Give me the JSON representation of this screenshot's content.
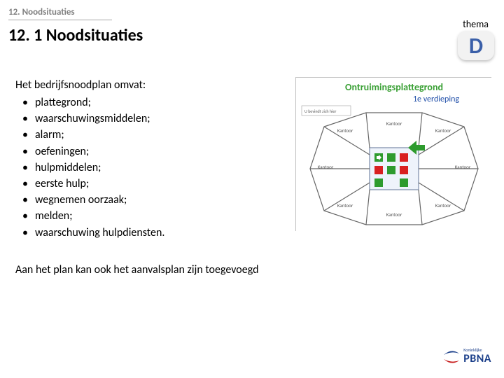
{
  "breadcrumb": "12. Noodsituaties",
  "section_title": "12. 1 Noodsituaties",
  "thema_label": "thema",
  "letter_badge": {
    "letter": "D",
    "text_color": "#3a5fa8",
    "bg_color": "#f2f2f2"
  },
  "content": {
    "intro": "Het bedrijfsnoodplan omvat:",
    "bullets": [
      "plattegrond;",
      "waarschuwingsmiddelen;",
      "alarm;",
      "oefeningen;",
      "hulpmiddelen;",
      "eerste hulp;",
      "wegnemen oorzaak;",
      "melden;",
      "waarschuwing hulpdiensten."
    ],
    "footer": "Aan het plan kan ook het aanvalsplan zijn toegevoegd"
  },
  "floorplan": {
    "title": "Ontruimingsplattegrond",
    "subtitle": "1e verdieping",
    "title_color": "#3aa035",
    "subtitle_color": "#1f4ea8",
    "room_labels": [
      "Kantoor",
      "Kantoor",
      "Kantoor",
      "Kantoor",
      "Kantoor",
      "Kantoor",
      "Kantoor",
      "Kantoor"
    ],
    "outline_color": "#666666",
    "bg_color": "#ffffff",
    "icon_colors": {
      "exit": "#2e9b2e",
      "alarm": "#d92020",
      "extinguisher": "#d92020"
    }
  },
  "logo": {
    "text": "PBNA",
    "swoosh_color_top": "#1b3f8a",
    "swoosh_color_bottom": "#c81e1e",
    "text_color": "#1b3f8a",
    "subtext": "Koninklijke"
  },
  "colors": {
    "breadcrumb_text": "#7f7f7f",
    "body_text": "#000000",
    "background": "#ffffff"
  },
  "fonts": {
    "breadcrumb_size": 13,
    "title_size": 24,
    "body_size": 16,
    "thema_size": 14,
    "badge_size": 32
  }
}
